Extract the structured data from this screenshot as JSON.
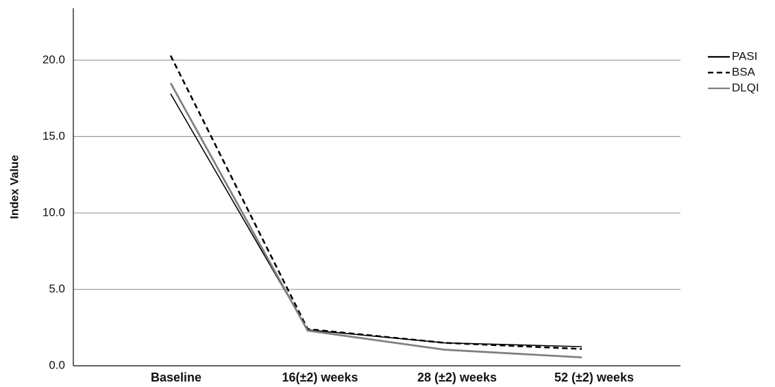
{
  "chart_data": {
    "type": "line",
    "y_label": "Index Value",
    "categories": [
      "Baseline",
      "16(±2) weeks",
      "28 (±2) weeks",
      "52 (±2) weeks"
    ],
    "series": [
      {
        "name": "PASI",
        "color": "#000000",
        "dash": "solid",
        "values": [
          17.8,
          2.35,
          1.5,
          1.25
        ]
      },
      {
        "name": "BSA",
        "color": "#000000",
        "dash": "dashed",
        "values": [
          20.3,
          2.4,
          1.5,
          1.1
        ]
      },
      {
        "name": "DLQI",
        "color": "#808080",
        "dash": "solid",
        "values": [
          18.5,
          2.3,
          1.05,
          0.55
        ]
      }
    ],
    "ylim": [
      0,
      23.4
    ],
    "yticks": [
      {
        "value": 0,
        "label": "0.0"
      },
      {
        "value": 5,
        "label": "5.0"
      },
      {
        "value": 10,
        "label": "10.0"
      },
      {
        "value": 15,
        "label": "15.0"
      },
      {
        "value": 20,
        "label": "20.0"
      }
    ],
    "grid": true,
    "legend": "top-right"
  }
}
